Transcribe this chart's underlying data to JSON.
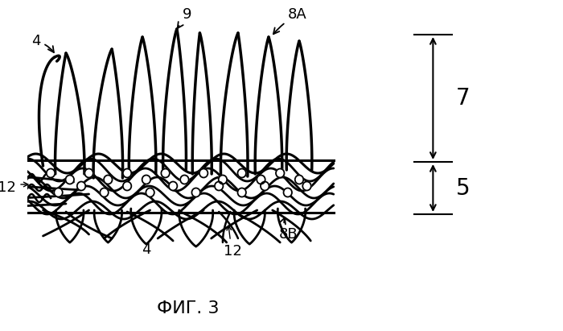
{
  "fig_label": "ФИГ. 3",
  "bg_color": "#ffffff",
  "line_color": "#000000",
  "labels": {
    "4_top": "4",
    "9": "9",
    "8A": "8А",
    "12_left": "12",
    "12_bottom": "12",
    "4_bottom": "4",
    "8B": "8В",
    "7": "7",
    "5": "5"
  }
}
